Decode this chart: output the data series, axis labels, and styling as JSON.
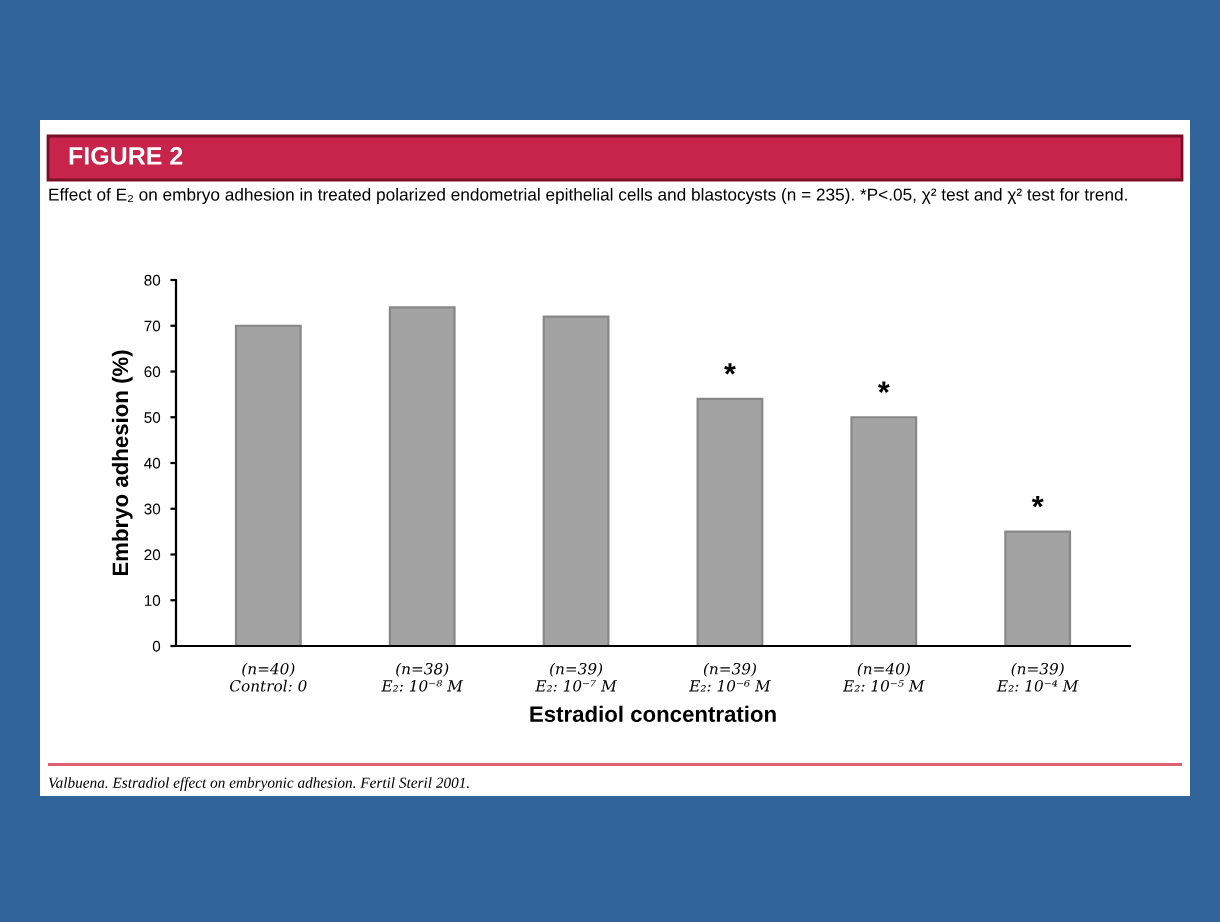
{
  "chart_data": {
    "type": "bar",
    "title": "FIGURE 2",
    "subtitle": "Effect of E₂ on embryo adhesion in treated polarized endometrial epithelial cells and blastocysts (n = 235). *P<.05, χ² test and χ² test for trend.",
    "xlabel": "Estradiol concentration",
    "ylabel": "Embryo adhesion (%)",
    "categories": [
      "(n=40)\nControl: 0",
      "(n=38)\nE₂: 10⁻⁸ M",
      "(n=39)\nE₂: 10⁻⁷ M",
      "(n=39)\nE₂: 10⁻⁶ M",
      "(n=40)\nE₂: 10⁻⁵ M",
      "(n=39)\nE₂: 10⁻⁴ M"
    ],
    "values": [
      70,
      74,
      72,
      54,
      50,
      25
    ],
    "color": "#a3a3a3",
    "ylim": [
      0,
      80
    ],
    "yticks": [
      0,
      10,
      20,
      30,
      40,
      50,
      60,
      70,
      80
    ],
    "grid": false,
    "annotations": [
      {
        "text": "*",
        "x": "(n=39)\nE₂: 10⁻⁶ M",
        "y": 54
      },
      {
        "text": "*",
        "x": "(n=40)\nE₂: 10⁻⁵ M",
        "y": 50
      },
      {
        "text": "*",
        "x": "(n=39)\nE₂: 10⁻⁴ M",
        "y": 25
      },
      "Valbuena. Estradiol effect on embryonic adhesion. Fertil Steril 2001."
    ]
  }
}
